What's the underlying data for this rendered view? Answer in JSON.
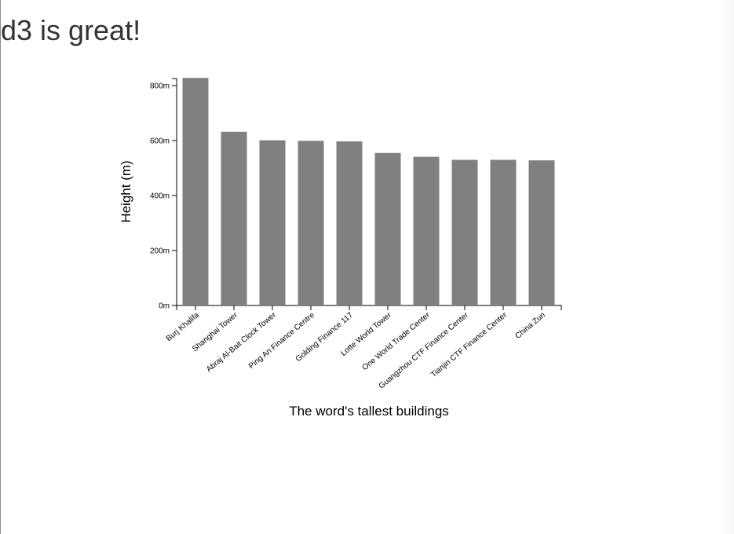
{
  "page": {
    "heading": "d3 is great!"
  },
  "chart_data": {
    "type": "bar",
    "categories": [
      "Burj Khalifa",
      "Shanghai Tower",
      "Abraj Al-Bait Clock Tower",
      "Ping An Finance Centre",
      "Golding Finance 117",
      "Lotte World Tower",
      "One World Trade Center",
      "Guangzhou CTF Finance Center",
      "Tianjin CTF Finance Center",
      "China Zun"
    ],
    "values": [
      828,
      632,
      601,
      599,
      597,
      555,
      541,
      530,
      530,
      528
    ],
    "xlabel": "The word's tallest buildings",
    "ylabel": "Height (m)",
    "ylim": [
      0,
      800
    ],
    "yticks": [
      "0m",
      "200m",
      "400m",
      "600m",
      "800m"
    ],
    "grid": false,
    "bar_color": "#808080"
  }
}
